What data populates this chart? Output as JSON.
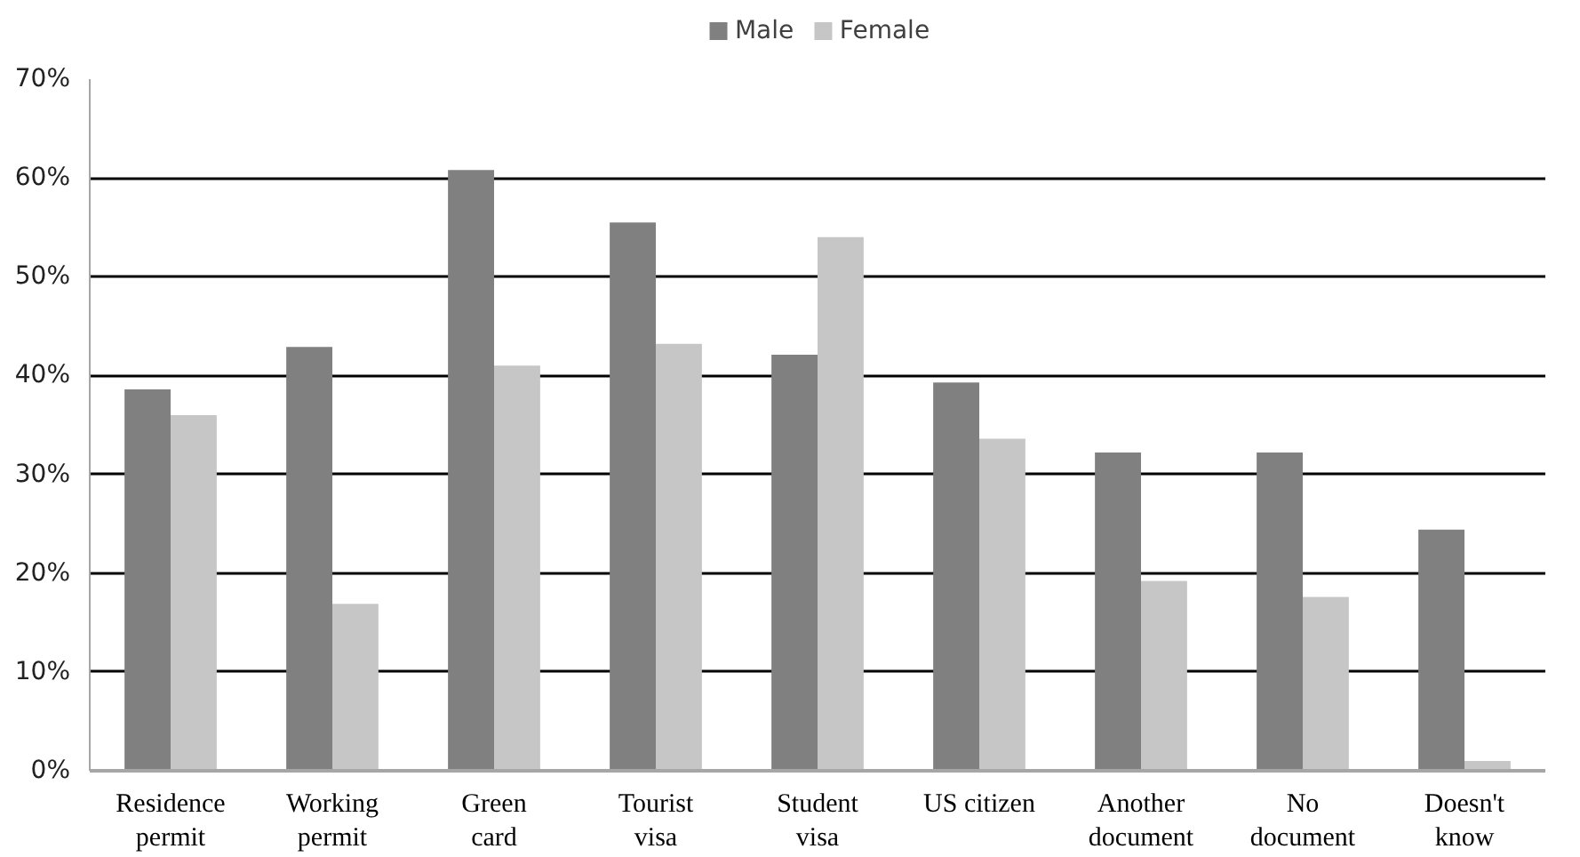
{
  "chart_data": {
    "type": "bar",
    "categories": [
      "Residence\npermit",
      "Working\npermit",
      "Green\ncard",
      "Tourist\nvisa",
      "Student\nvisa",
      "US citizen",
      "Another\ndocument",
      "No\ndocument",
      "Doesn't\nknow"
    ],
    "series": [
      {
        "name": "Male",
        "color": "#808080",
        "values": [
          38.6,
          42.9,
          60.8,
          55.5,
          42.1,
          39.3,
          32.2,
          32.2,
          24.4
        ]
      },
      {
        "name": "Female",
        "color": "#c6c6c6",
        "values": [
          36.0,
          16.9,
          41.0,
          43.2,
          54.0,
          33.6,
          19.2,
          17.6,
          1.0
        ]
      }
    ],
    "ylim": [
      0,
      70
    ],
    "yticks": [
      {
        "value": 0,
        "label": "0%"
      },
      {
        "value": 10,
        "label": "10%"
      },
      {
        "value": 20,
        "label": "20%"
      },
      {
        "value": 30,
        "label": "30%"
      },
      {
        "value": 40,
        "label": "40%"
      },
      {
        "value": 50,
        "label": "50%"
      },
      {
        "value": 60,
        "label": "60%"
      },
      {
        "value": 70,
        "label": "70%"
      }
    ],
    "grid": "y",
    "legend": "top"
  }
}
